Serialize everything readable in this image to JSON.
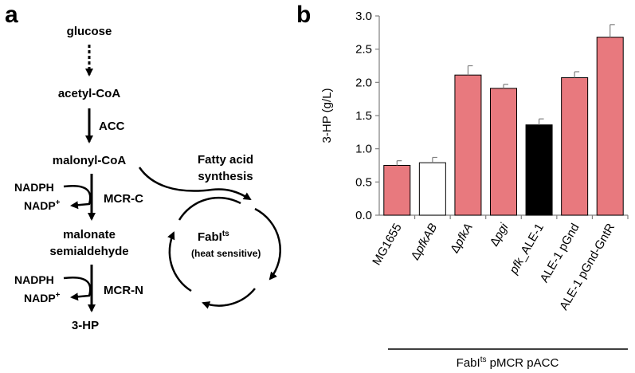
{
  "panel_a": {
    "letter": "a",
    "pathway": {
      "glucose": "glucose",
      "acetyl_coa": "acetyl-CoA",
      "acc": "ACC",
      "malonyl_coa": "malonyl-CoA",
      "malonate_line1": "malonate",
      "malonate_line2": "semialdehyde",
      "mcr_c": "MCR-C",
      "mcr_n": "MCR-N",
      "product": "3-HP",
      "nadph_1": "NADPH",
      "nadp_1_base": "NADP",
      "nadp_1_sup": "+",
      "nadph_2": "NADPH",
      "nadp_2_base": "NADP",
      "nadp_2_sup": "+"
    },
    "cycle": {
      "fatty_line1": "Fatty acid",
      "fatty_line2": "synthesis",
      "fabi_base": "FabI",
      "fabi_sup": "ts",
      "fabi_note": "(heat sensitive)"
    }
  },
  "panel_b": {
    "letter": "b",
    "strain_group_base": "FabI",
    "strain_group_sup": "ts",
    "strain_group_rest": " pMCR pACC"
  },
  "colors": {
    "pink": "#e8797e",
    "white": "#ffffff",
    "black": "#000000",
    "error_bar": "#808080",
    "axis": "#808080"
  },
  "chart_data": {
    "type": "bar",
    "ylabel": "3-HP (g/L)",
    "xlabel": "",
    "ylim": [
      0,
      3.0
    ],
    "yticks": [
      "0.0",
      "0.5",
      "1.0",
      "1.5",
      "2.0",
      "2.5",
      "3.0"
    ],
    "ytick_values": [
      0,
      0.5,
      1.0,
      1.5,
      2.0,
      2.5,
      3.0
    ],
    "grid": false,
    "categories": [
      {
        "label": "MG1655",
        "parts": [
          {
            "t": "MG1655",
            "i": false
          }
        ]
      },
      {
        "label": "ΔpfkAB",
        "parts": [
          {
            "t": "Δ",
            "i": false
          },
          {
            "t": "pfkAB",
            "i": true
          }
        ]
      },
      {
        "label": "ΔpfkA",
        "parts": [
          {
            "t": "Δ",
            "i": false
          },
          {
            "t": "pfkA",
            "i": true
          }
        ]
      },
      {
        "label": "Δpgi",
        "parts": [
          {
            "t": "Δ",
            "i": false
          },
          {
            "t": "pgi",
            "i": true
          }
        ]
      },
      {
        "label": "pfk_ALE-1",
        "parts": [
          {
            "t": "pfk",
            "i": true
          },
          {
            "t": "_ALE-1",
            "i": false
          }
        ]
      },
      {
        "label": "ALE-1 pGnd",
        "parts": [
          {
            "t": "ALE-1 pGnd",
            "i": false
          }
        ]
      },
      {
        "label": "ALE-1 pGnd-GntR",
        "parts": [
          {
            "t": "ALE-1 pGnd-GntR",
            "i": false
          }
        ]
      }
    ],
    "values": [
      0.75,
      0.79,
      2.11,
      1.91,
      1.36,
      2.07,
      2.68
    ],
    "errors": [
      0.07,
      0.08,
      0.14,
      0.06,
      0.09,
      0.09,
      0.19
    ],
    "bar_colors": [
      "#e8797e",
      "#ffffff",
      "#e8797e",
      "#e8797e",
      "#000000",
      "#e8797e",
      "#e8797e"
    ]
  }
}
